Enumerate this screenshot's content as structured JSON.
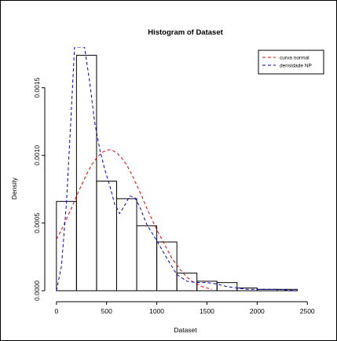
{
  "chart_data": {
    "type": "histogram",
    "title": "Histogram of Dataset",
    "xlabel": "Dataset",
    "ylabel": "Density",
    "xlim": [
      -30,
      2600
    ],
    "ylim": [
      0,
      0.0018
    ],
    "x_ticks": [
      0,
      500,
      1000,
      1500,
      2000,
      2500
    ],
    "x_tick_labels": [
      "0",
      "500",
      "1000",
      "1500",
      "2000",
      "2500"
    ],
    "y_ticks": [
      0.0,
      0.0005,
      0.001,
      0.0015
    ],
    "y_tick_labels": [
      "0.0000",
      "0.0005",
      "0.0010",
      "0.0015"
    ],
    "bins": [
      {
        "start": 0,
        "end": 200,
        "density": 0.00066
      },
      {
        "start": 200,
        "end": 400,
        "density": 0.00174
      },
      {
        "start": 400,
        "end": 600,
        "density": 0.00081
      },
      {
        "start": 600,
        "end": 800,
        "density": 0.00068
      },
      {
        "start": 800,
        "end": 1000,
        "density": 0.00048
      },
      {
        "start": 1000,
        "end": 1200,
        "density": 0.00036
      },
      {
        "start": 1200,
        "end": 1400,
        "density": 0.00013
      },
      {
        "start": 1400,
        "end": 1600,
        "density": 7e-05
      },
      {
        "start": 1600,
        "end": 1800,
        "density": 6e-05
      },
      {
        "start": 1800,
        "end": 2000,
        "density": 2e-05
      },
      {
        "start": 2000,
        "end": 2200,
        "density": 1e-05
      },
      {
        "start": 2200,
        "end": 2400,
        "density": 1e-05
      }
    ],
    "series": [
      {
        "name": "curva normal",
        "color": "#ee0000",
        "style": "dashed",
        "x": [
          0,
          50,
          100,
          150,
          200,
          250,
          300,
          350,
          400,
          450,
          500,
          550,
          600,
          650,
          700,
          750,
          800,
          850,
          900,
          950,
          1000,
          1050,
          1100,
          1150,
          1200,
          1250,
          1300,
          1350,
          1400,
          1450,
          1500,
          1550
        ],
        "y": [
          0.00038,
          0.00045,
          0.00053,
          0.00061,
          0.0007,
          0.00078,
          0.00086,
          0.00093,
          0.00098,
          0.00102,
          0.00104,
          0.00104,
          0.00102,
          0.00098,
          0.00093,
          0.00086,
          0.00078,
          0.0007,
          0.00061,
          0.00053,
          0.00045,
          0.00038,
          0.00031,
          0.00024,
          0.00019,
          0.00014,
          0.0001,
          7e-05,
          5e-05,
          3e-05,
          2e-05,
          1e-05
        ]
      },
      {
        "name": "densidade NP",
        "color": "#0000cc",
        "style": "dashed",
        "x": [
          0,
          50,
          100,
          150,
          180,
          230,
          280,
          330,
          380,
          430,
          480,
          530,
          580,
          630,
          680,
          730,
          780,
          830,
          900,
          1000,
          1100,
          1200,
          1300,
          1400,
          1500,
          1600,
          1700,
          1800,
          1900,
          2000,
          2200,
          2400
        ],
        "y": [
          0.0,
          0.00018,
          0.00065,
          0.00135,
          0.0018,
          0.0018,
          0.0018,
          0.00155,
          0.00125,
          0.00105,
          0.0009,
          0.00078,
          0.00064,
          0.00057,
          0.00063,
          0.0007,
          0.00069,
          0.00062,
          0.00049,
          0.00037,
          0.00024,
          0.00012,
          7e-05,
          6e-05,
          6e-05,
          5e-05,
          3e-05,
          2e-05,
          1e-05,
          1e-05,
          1e-05,
          0.0
        ]
      }
    ],
    "legend": {
      "position": "top-right",
      "entries": [
        "curva normal",
        "densidade NP"
      ]
    }
  }
}
